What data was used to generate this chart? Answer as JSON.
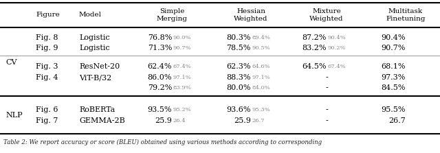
{
  "figsize": [
    6.4,
    2.23
  ],
  "dpi": 100,
  "col_headers": [
    "",
    "Figure",
    "Model",
    "Simple\nMerging",
    "Hessian\nWeighted",
    "Mixture\nWeighted",
    "Multitask\nFinetuning"
  ],
  "rows": [
    {
      "group": "CV",
      "fig": "Fig. 8",
      "model": "Logistic",
      "sm": [
        "76.8%",
        "90.0%"
      ],
      "hw": [
        "80.3%",
        "89.4%"
      ],
      "mw": [
        "87.2%",
        "90.4%"
      ],
      "mt": "90.4%"
    },
    {
      "group": "",
      "fig": "Fig. 9",
      "model": "Logistic",
      "sm": [
        "71.3%",
        "90.7%"
      ],
      "hw": [
        "78.5%",
        "90.5%"
      ],
      "mw": [
        "83.2%",
        "90.2%"
      ],
      "mt": "90.7%"
    },
    {
      "group": "",
      "fig": "Fig. 3",
      "model": "ResNet-20",
      "sm": [
        "62.4%",
        "67.4%"
      ],
      "hw": [
        "62.3%",
        "64.6%"
      ],
      "mw": [
        "64.5%",
        "67.4%"
      ],
      "mt": "68.1%"
    },
    {
      "group": "",
      "fig": "Fig. 4",
      "model": "ViT-B/32",
      "sm": [
        "86.0%",
        "97.1%"
      ],
      "hw": [
        "88.3%",
        "97.1%"
      ],
      "mw": [
        "-",
        ""
      ],
      "mt": "97.3%"
    },
    {
      "group": "",
      "fig": "",
      "model": "",
      "sm": [
        "79.2%",
        "83.9%"
      ],
      "hw": [
        "80.0%",
        "84.0%"
      ],
      "mw": [
        "-",
        ""
      ],
      "mt": "84.5%"
    },
    {
      "group": "NLP",
      "fig": "Fig. 6",
      "model": "RoBERTa",
      "sm": [
        "93.5%",
        "95.2%"
      ],
      "hw": [
        "93.6%",
        "95.3%"
      ],
      "mw": [
        "-",
        ""
      ],
      "mt": "95.5%"
    },
    {
      "group": "",
      "fig": "Fig. 7",
      "model": "GEMMA-2B",
      "sm": [
        "25.9",
        "26.4"
      ],
      "hw": [
        "25.9",
        "26.7"
      ],
      "mw": [
        "-",
        ""
      ],
      "mt": "26.7"
    }
  ],
  "thin_line_after": 1,
  "caption": "Table 2: We report accuracy or score (BLEU) obtained using various methods according to corresponding"
}
